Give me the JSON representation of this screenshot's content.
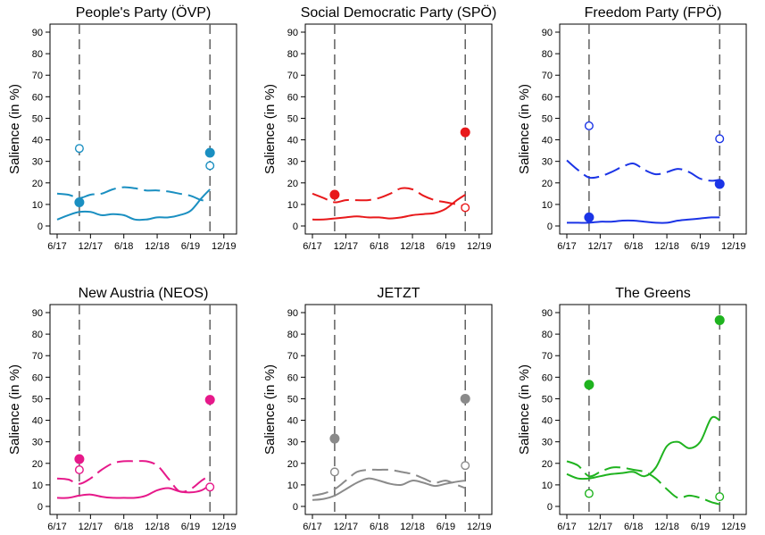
{
  "chart_data": [
    {
      "type": "line",
      "title": "People's Party (ÖVP)",
      "ylabel": "Salience (in %)",
      "xlabel": "",
      "color": "#1a8fc1",
      "ylim": [
        0,
        90
      ],
      "yticks": [
        0,
        10,
        20,
        30,
        40,
        50,
        60,
        70,
        80,
        90
      ],
      "xlim": [
        0,
        31
      ],
      "xticks": [
        {
          "x": 0,
          "label": "6/17"
        },
        {
          "x": 6,
          "label": "12/17"
        },
        {
          "x": 12,
          "label": "6/18"
        },
        {
          "x": 18,
          "label": "12/18"
        },
        {
          "x": 24,
          "label": "6/19"
        },
        {
          "x": 30,
          "label": "12/19"
        }
      ],
      "events": [
        4,
        27.5
      ],
      "series": [
        {
          "style": "solid",
          "x": [
            0,
            2,
            4,
            6,
            8,
            10,
            12,
            14,
            16,
            18,
            20,
            22,
            24,
            26,
            27.5
          ],
          "y": [
            3,
            5,
            6.5,
            6.5,
            5,
            5.5,
            5,
            3,
            3,
            4,
            4,
            5,
            7,
            13,
            17
          ]
        },
        {
          "style": "dashed",
          "x": [
            0,
            2,
            4,
            6,
            8,
            10,
            12,
            14,
            16,
            18,
            20,
            22,
            24,
            26,
            27.5
          ],
          "y": [
            15,
            14.5,
            13,
            14.5,
            15,
            17,
            18,
            17.5,
            16.5,
            16.5,
            16,
            15,
            14,
            12,
            12
          ]
        }
      ],
      "points": [
        {
          "x": 4,
          "y": 11,
          "filled": true
        },
        {
          "x": 4,
          "y": 36,
          "filled": false
        },
        {
          "x": 27.5,
          "y": 34,
          "filled": true
        },
        {
          "x": 27.5,
          "y": 28,
          "filled": false
        }
      ]
    },
    {
      "type": "line",
      "title": "Social Democratic Party (SPÖ)",
      "ylabel": "Salience (in %)",
      "xlabel": "",
      "color": "#e8191b",
      "ylim": [
        0,
        90
      ],
      "yticks": [
        0,
        10,
        20,
        30,
        40,
        50,
        60,
        70,
        80,
        90
      ],
      "xlim": [
        0,
        31
      ],
      "xticks": [
        {
          "x": 0,
          "label": "6/17"
        },
        {
          "x": 6,
          "label": "12/17"
        },
        {
          "x": 12,
          "label": "6/18"
        },
        {
          "x": 18,
          "label": "12/18"
        },
        {
          "x": 24,
          "label": "6/19"
        },
        {
          "x": 30,
          "label": "12/19"
        }
      ],
      "events": [
        4,
        27.5
      ],
      "series": [
        {
          "style": "solid",
          "x": [
            0,
            2,
            4,
            6,
            8,
            10,
            12,
            14,
            16,
            18,
            20,
            22,
            24,
            26,
            27.5
          ],
          "y": [
            3,
            3,
            3.5,
            4,
            4.5,
            4,
            4,
            3.5,
            4,
            5,
            5.5,
            6,
            8,
            12,
            14.5
          ]
        },
        {
          "style": "dashed",
          "x": [
            0,
            2,
            4,
            6,
            8,
            10,
            12,
            14,
            16,
            18,
            20,
            22,
            24,
            26,
            27.5
          ],
          "y": [
            15,
            13,
            11,
            12,
            12,
            12,
            13,
            15,
            17.5,
            17,
            14,
            12,
            11,
            10,
            9
          ]
        }
      ],
      "points": [
        {
          "x": 4,
          "y": 14.5,
          "filled": true
        },
        {
          "x": 27.5,
          "y": 43.5,
          "filled": true
        },
        {
          "x": 27.5,
          "y": 8.5,
          "filled": false
        }
      ]
    },
    {
      "type": "line",
      "title": "Freedom Party (FPÖ)",
      "ylabel": "Salience (in %)",
      "xlabel": "",
      "color": "#1b34e6",
      "ylim": [
        0,
        90
      ],
      "yticks": [
        0,
        10,
        20,
        30,
        40,
        50,
        60,
        70,
        80,
        90
      ],
      "xlim": [
        0,
        31
      ],
      "xticks": [
        {
          "x": 0,
          "label": "6/17"
        },
        {
          "x": 6,
          "label": "12/17"
        },
        {
          "x": 12,
          "label": "6/18"
        },
        {
          "x": 18,
          "label": "12/18"
        },
        {
          "x": 24,
          "label": "6/19"
        },
        {
          "x": 30,
          "label": "12/19"
        }
      ],
      "events": [
        4,
        27.5
      ],
      "series": [
        {
          "style": "solid",
          "x": [
            0,
            2,
            4,
            6,
            8,
            10,
            12,
            14,
            16,
            18,
            20,
            22,
            24,
            26,
            27.5
          ],
          "y": [
            1.5,
            1.5,
            1.5,
            2,
            2,
            2.5,
            2.5,
            2,
            1.5,
            1.5,
            2.5,
            3,
            3.5,
            4,
            4
          ]
        },
        {
          "style": "dashed",
          "x": [
            0,
            2,
            4,
            6,
            8,
            10,
            12,
            14,
            16,
            18,
            20,
            22,
            24,
            26,
            27.5
          ],
          "y": [
            30.5,
            26,
            22.5,
            23,
            25,
            27.5,
            29,
            26,
            24,
            25,
            26.5,
            25,
            22,
            21,
            21.5
          ]
        }
      ],
      "points": [
        {
          "x": 4,
          "y": 4,
          "filled": true
        },
        {
          "x": 4,
          "y": 46.5,
          "filled": false
        },
        {
          "x": 27.5,
          "y": 19.5,
          "filled": true
        },
        {
          "x": 27.5,
          "y": 40.5,
          "filled": false
        }
      ]
    },
    {
      "type": "line",
      "title": "New Austria (NEOS)",
      "ylabel": "Salience (in %)",
      "xlabel": "",
      "color": "#e6198a",
      "ylim": [
        0,
        90
      ],
      "yticks": [
        0,
        10,
        20,
        30,
        40,
        50,
        60,
        70,
        80,
        90
      ],
      "xlim": [
        0,
        31
      ],
      "xticks": [
        {
          "x": 0,
          "label": "6/17"
        },
        {
          "x": 6,
          "label": "12/17"
        },
        {
          "x": 12,
          "label": "6/18"
        },
        {
          "x": 18,
          "label": "12/18"
        },
        {
          "x": 24,
          "label": "6/19"
        },
        {
          "x": 30,
          "label": "12/19"
        }
      ],
      "events": [
        4,
        27.5
      ],
      "series": [
        {
          "style": "solid",
          "x": [
            0,
            2,
            4,
            6,
            8,
            10,
            12,
            14,
            16,
            18,
            20,
            22,
            24,
            26,
            27.5
          ],
          "y": [
            4,
            4,
            5,
            5.5,
            4.5,
            4,
            4,
            4,
            5,
            7.5,
            8.5,
            7,
            6.5,
            7.5,
            10
          ]
        },
        {
          "style": "dashed",
          "x": [
            0,
            2,
            4,
            6,
            8,
            10,
            12,
            14,
            16,
            18,
            20,
            22,
            24,
            26,
            27.5
          ],
          "y": [
            13,
            12.5,
            10.5,
            13,
            17,
            20,
            21,
            21,
            21,
            19,
            13,
            7,
            8,
            12,
            14.5
          ]
        }
      ],
      "points": [
        {
          "x": 4,
          "y": 22,
          "filled": true
        },
        {
          "x": 4,
          "y": 17,
          "filled": false
        },
        {
          "x": 27.5,
          "y": 49.5,
          "filled": true
        },
        {
          "x": 27.5,
          "y": 9,
          "filled": false
        }
      ]
    },
    {
      "type": "line",
      "title": "JETZT",
      "ylabel": "Salience (in %)",
      "xlabel": "",
      "color": "#8a8a8a",
      "ylim": [
        0,
        90
      ],
      "yticks": [
        0,
        10,
        20,
        30,
        40,
        50,
        60,
        70,
        80,
        90
      ],
      "xlim": [
        0,
        31
      ],
      "xticks": [
        {
          "x": 0,
          "label": "6/17"
        },
        {
          "x": 6,
          "label": "12/17"
        },
        {
          "x": 12,
          "label": "6/18"
        },
        {
          "x": 18,
          "label": "12/18"
        },
        {
          "x": 24,
          "label": "6/19"
        },
        {
          "x": 30,
          "label": "12/19"
        }
      ],
      "events": [
        4,
        27.5
      ],
      "series": [
        {
          "style": "solid",
          "x": [
            0,
            2,
            4,
            6,
            8,
            10,
            12,
            14,
            16,
            18,
            20,
            22,
            24,
            26,
            27.5
          ],
          "y": [
            3,
            3.5,
            5,
            8,
            11,
            13,
            12,
            10.5,
            10,
            12,
            11,
            9.5,
            10.5,
            11.5,
            12
          ]
        },
        {
          "style": "dashed",
          "x": [
            0,
            2,
            4,
            6,
            8,
            10,
            12,
            14,
            16,
            18,
            20,
            22,
            24,
            26,
            27.5
          ],
          "y": [
            5,
            6,
            8,
            12,
            16,
            17,
            17,
            17,
            16,
            15,
            13,
            11,
            12,
            10,
            8.5
          ]
        }
      ],
      "points": [
        {
          "x": 4,
          "y": 31.5,
          "filled": true
        },
        {
          "x": 4,
          "y": 16,
          "filled": false
        },
        {
          "x": 27.5,
          "y": 50,
          "filled": true
        },
        {
          "x": 27.5,
          "y": 19,
          "filled": false
        }
      ]
    },
    {
      "type": "line",
      "title": "The Greens",
      "ylabel": "Salience (in %)",
      "xlabel": "",
      "color": "#1fb31f",
      "ylim": [
        0,
        90
      ],
      "yticks": [
        0,
        10,
        20,
        30,
        40,
        50,
        60,
        70,
        80,
        90
      ],
      "xlim": [
        0,
        31
      ],
      "xticks": [
        {
          "x": 0,
          "label": "6/17"
        },
        {
          "x": 6,
          "label": "12/17"
        },
        {
          "x": 12,
          "label": "6/18"
        },
        {
          "x": 18,
          "label": "12/18"
        },
        {
          "x": 24,
          "label": "6/19"
        },
        {
          "x": 30,
          "label": "12/19"
        }
      ],
      "events": [
        4,
        27.5
      ],
      "series": [
        {
          "style": "solid",
          "x": [
            0,
            2,
            4,
            6,
            8,
            10,
            12,
            14,
            16,
            18,
            20,
            22,
            24,
            26,
            27.5
          ],
          "y": [
            15,
            13,
            13,
            14,
            15,
            15.5,
            16,
            14,
            18,
            28,
            30,
            27,
            30,
            41,
            40
          ]
        },
        {
          "style": "dashed",
          "x": [
            0,
            2,
            4,
            6,
            8,
            10,
            12,
            14,
            16,
            18,
            20,
            22,
            24,
            26,
            27.5
          ],
          "y": [
            21,
            19,
            14,
            16,
            18,
            18,
            17,
            16,
            13,
            8,
            4,
            5,
            4,
            2,
            1
          ]
        }
      ],
      "points": [
        {
          "x": 4,
          "y": 56.5,
          "filled": true
        },
        {
          "x": 4,
          "y": 6,
          "filled": false
        },
        {
          "x": 27.5,
          "y": 86.5,
          "filled": true
        },
        {
          "x": 27.5,
          "y": 4.5,
          "filled": false
        }
      ]
    }
  ]
}
